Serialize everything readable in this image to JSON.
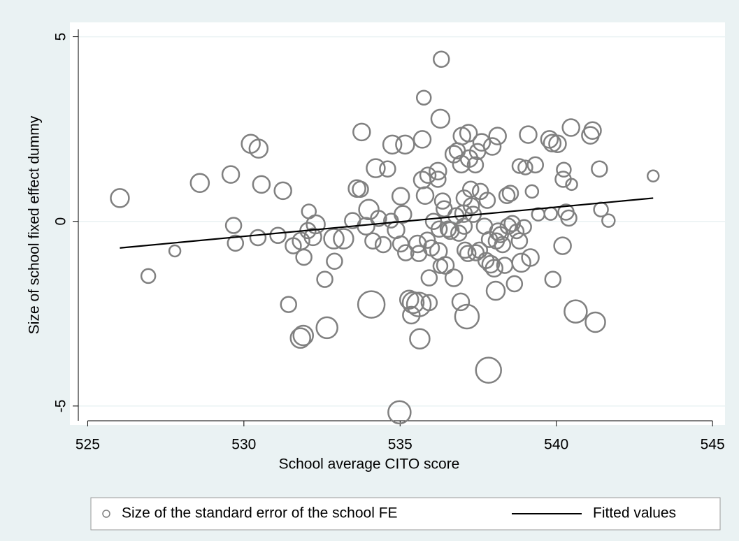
{
  "chart_data": {
    "type": "scatter",
    "x_label": "School average CITO score",
    "y_label": "Size of school fixed effect dummy",
    "xlim": [
      524.7,
      545.4
    ],
    "xticks": [
      525,
      530,
      535,
      540,
      545
    ],
    "ylim": [
      -5.4,
      5.2
    ],
    "yticks": [
      -5,
      0,
      5
    ],
    "grid": true,
    "legend": "bottom",
    "series": [
      {
        "name": "Size of the standard error of the school FE",
        "type": "scatter",
        "color": "#808080",
        "x": [
          526.03,
          526.94,
          527.79,
          528.59,
          529.58,
          529.67,
          529.73,
          530.22,
          530.45,
          530.56,
          530.47,
          531.09,
          531.25,
          531.43,
          531.58,
          531.92,
          532.05,
          532.08,
          532.21,
          531.83,
          532.3,
          532.59,
          532.66,
          531.81,
          531.9,
          532.9,
          532.88,
          533.19,
          533.48,
          533.62,
          533.73,
          533.77,
          533.91,
          534.08,
          534.0,
          534.13,
          534.22,
          534.31,
          534.46,
          534.6,
          534.75,
          534.71,
          534.87,
          535.02,
          535.02,
          535.09,
          534.98,
          535.16,
          535.18,
          535.29,
          535.36,
          535.42,
          535.56,
          535.6,
          535.6,
          535.63,
          535.71,
          535.76,
          535.71,
          535.8,
          535.87,
          535.89,
          535.93,
          535.93,
          536.0,
          536.07,
          536.23,
          536.25,
          536.32,
          536.29,
          536.21,
          536.21,
          536.29,
          536.36,
          536.41,
          536.45,
          536.54,
          536.61,
          536.72,
          536.72,
          536.79,
          536.83,
          536.88,
          536.94,
          536.96,
          536.98,
          537.03,
          537.05,
          537.05,
          537.08,
          537.14,
          537.17,
          537.19,
          537.21,
          537.26,
          537.28,
          537.34,
          537.41,
          537.43,
          537.48,
          537.54,
          537.57,
          537.61,
          537.7,
          537.75,
          537.79,
          537.83,
          537.86,
          537.9,
          537.95,
          538.01,
          538.06,
          538.08,
          538.12,
          538.14,
          538.21,
          538.28,
          538.35,
          538.42,
          538.46,
          538.53,
          538.59,
          538.66,
          538.73,
          538.82,
          538.82,
          538.88,
          538.97,
          539.01,
          539.1,
          539.17,
          539.22,
          539.33,
          539.42,
          539.82,
          539.78,
          539.87,
          539.89,
          540.04,
          540.2,
          540.22,
          540.24,
          540.31,
          540.4,
          540.47,
          540.49,
          540.62,
          541.09,
          541.16,
          541.25,
          541.38,
          541.43,
          541.67,
          543.1
        ],
        "values": [
          0.63,
          -1.48,
          -0.8,
          1.04,
          1.27,
          -0.11,
          -0.59,
          2.1,
          -0.44,
          1.0,
          1.97,
          -0.38,
          0.83,
          -2.25,
          -0.66,
          -0.97,
          -0.25,
          0.27,
          -0.42,
          -0.53,
          -0.08,
          -1.57,
          -2.88,
          -3.16,
          -3.09,
          -1.08,
          -0.47,
          -0.47,
          0.02,
          0.89,
          0.87,
          2.42,
          -0.13,
          -2.25,
          0.32,
          -0.53,
          1.44,
          0.08,
          -0.63,
          1.42,
          2.08,
          0.02,
          -0.23,
          -0.61,
          0.68,
          0.19,
          -5.17,
          2.08,
          -0.85,
          -2.12,
          -2.54,
          -2.2,
          -0.61,
          -0.87,
          -2.25,
          -3.18,
          2.22,
          3.35,
          1.12,
          0.7,
          -0.51,
          1.25,
          -1.53,
          -2.2,
          -0.72,
          0.0,
          -0.81,
          -0.21,
          4.39,
          2.78,
          1.36,
          1.14,
          -1.21,
          0.55,
          0.34,
          -1.19,
          -0.21,
          -0.25,
          -1.53,
          1.82,
          0.15,
          1.91,
          -0.32,
          -2.18,
          1.55,
          2.31,
          0.21,
          -0.13,
          0.63,
          -0.78,
          -2.58,
          -0.87,
          2.39,
          1.7,
          0.87,
          0.42,
          0.19,
          1.53,
          -0.85,
          1.89,
          -0.78,
          0.81,
          2.14,
          -0.13,
          -1.06,
          0.57,
          -4.03,
          -0.49,
          -1.16,
          2.03,
          -1.27,
          -1.88,
          -0.53,
          2.31,
          -0.28,
          -0.36,
          -0.63,
          -1.19,
          0.7,
          -0.13,
          0.76,
          -0.06,
          -1.69,
          -0.27,
          -0.53,
          1.5,
          -1.12,
          -0.15,
          1.46,
          2.35,
          -0.98,
          0.81,
          1.53,
          0.19,
          0.21,
          2.22,
          2.12,
          -1.57,
          2.1,
          -0.66,
          1.14,
          1.4,
          0.25,
          0.09,
          2.54,
          1.0,
          -2.44,
          2.33,
          2.46,
          -2.73,
          1.42,
          0.32,
          0.02,
          1.23
        ],
        "sizes": [
          13,
          10,
          8,
          13,
          12,
          11,
          11,
          13,
          11,
          12,
          13,
          11,
          12,
          11,
          11,
          11,
          11,
          10,
          12,
          12,
          13,
          11,
          15,
          14,
          14,
          11,
          14,
          14,
          11,
          12,
          11,
          12,
          12,
          19,
          14,
          11,
          13,
          11,
          11,
          11,
          13,
          10,
          12,
          11,
          12,
          12,
          16,
          13,
          11,
          13,
          12,
          15,
          12,
          11,
          17,
          14,
          12,
          10,
          12,
          12,
          11,
          11,
          11,
          11,
          11,
          11,
          12,
          11,
          11,
          13,
          12,
          11,
          10,
          11,
          11,
          12,
          11,
          12,
          12,
          12,
          11,
          11,
          11,
          12,
          12,
          12,
          12,
          11,
          11,
          11,
          17,
          11,
          12,
          12,
          11,
          11,
          11,
          11,
          11,
          11,
          11,
          11,
          12,
          11,
          11,
          11,
          18,
          11,
          12,
          12,
          12,
          13,
          11,
          12,
          12,
          11,
          11,
          11,
          11,
          11,
          11,
          11,
          11,
          10,
          11,
          10,
          13,
          10,
          10,
          12,
          12,
          9,
          11,
          9,
          9,
          12,
          12,
          11,
          12,
          12,
          11,
          10,
          11,
          11,
          12,
          8,
          16,
          12,
          12,
          14,
          11,
          10,
          9,
          8
        ]
      },
      {
        "name": "Fitted values",
        "type": "line",
        "color": "#000000",
        "x": [
          526.03,
          543.1
        ],
        "values": [
          -0.72,
          0.63
        ]
      }
    ]
  }
}
